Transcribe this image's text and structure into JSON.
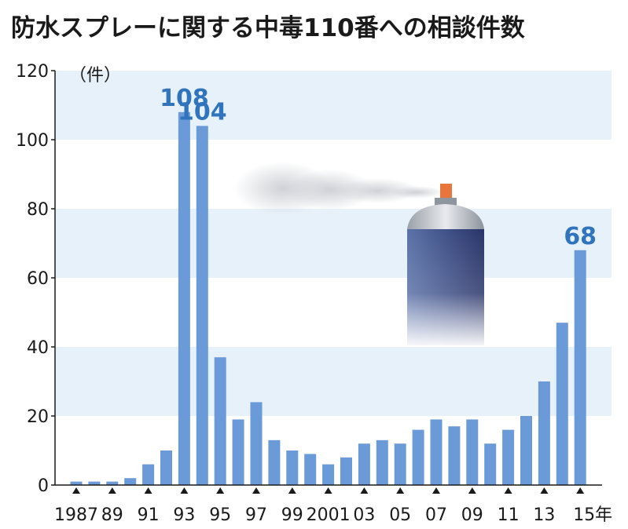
{
  "chart_data": {
    "type": "bar",
    "title": "防水スプレーに関する中毒110番への相談件数",
    "unit_label": "（件）",
    "ylim": [
      0,
      120
    ],
    "yticks": [
      "0",
      "20",
      "40",
      "60",
      "80",
      "100",
      "120"
    ],
    "grid": "alternating horizontal bands",
    "categories": [
      "1987",
      "1988",
      "1989",
      "1990",
      "1991",
      "1992",
      "1993",
      "1994",
      "1995",
      "1996",
      "1997",
      "1998",
      "1999",
      "2000",
      "2001",
      "2002",
      "2003",
      "2004",
      "2005",
      "2006",
      "2007",
      "2008",
      "2009",
      "2010",
      "2011",
      "2012",
      "2013",
      "2014",
      "2015"
    ],
    "values": [
      1,
      1,
      1,
      2,
      6,
      10,
      108,
      104,
      37,
      19,
      24,
      13,
      10,
      9,
      6,
      8,
      12,
      13,
      12,
      16,
      19,
      17,
      19,
      12,
      16,
      20,
      30,
      47,
      68
    ],
    "x_tick_labels": [
      "1987",
      "89",
      "91",
      "93",
      "95",
      "97",
      "99",
      "2001",
      "03",
      "05",
      "07",
      "09",
      "11",
      "13",
      "15年"
    ],
    "data_labels": [
      {
        "category": "1993",
        "text": "108"
      },
      {
        "category": "1994",
        "text": "104"
      },
      {
        "category": "2015",
        "text": "68"
      }
    ],
    "colors": {
      "bar": "#6a9bd8",
      "band": "#e6f1fa",
      "label": "#2f74bd",
      "axis": "#1a1a1a"
    },
    "illustration": "spray-can-icon"
  }
}
